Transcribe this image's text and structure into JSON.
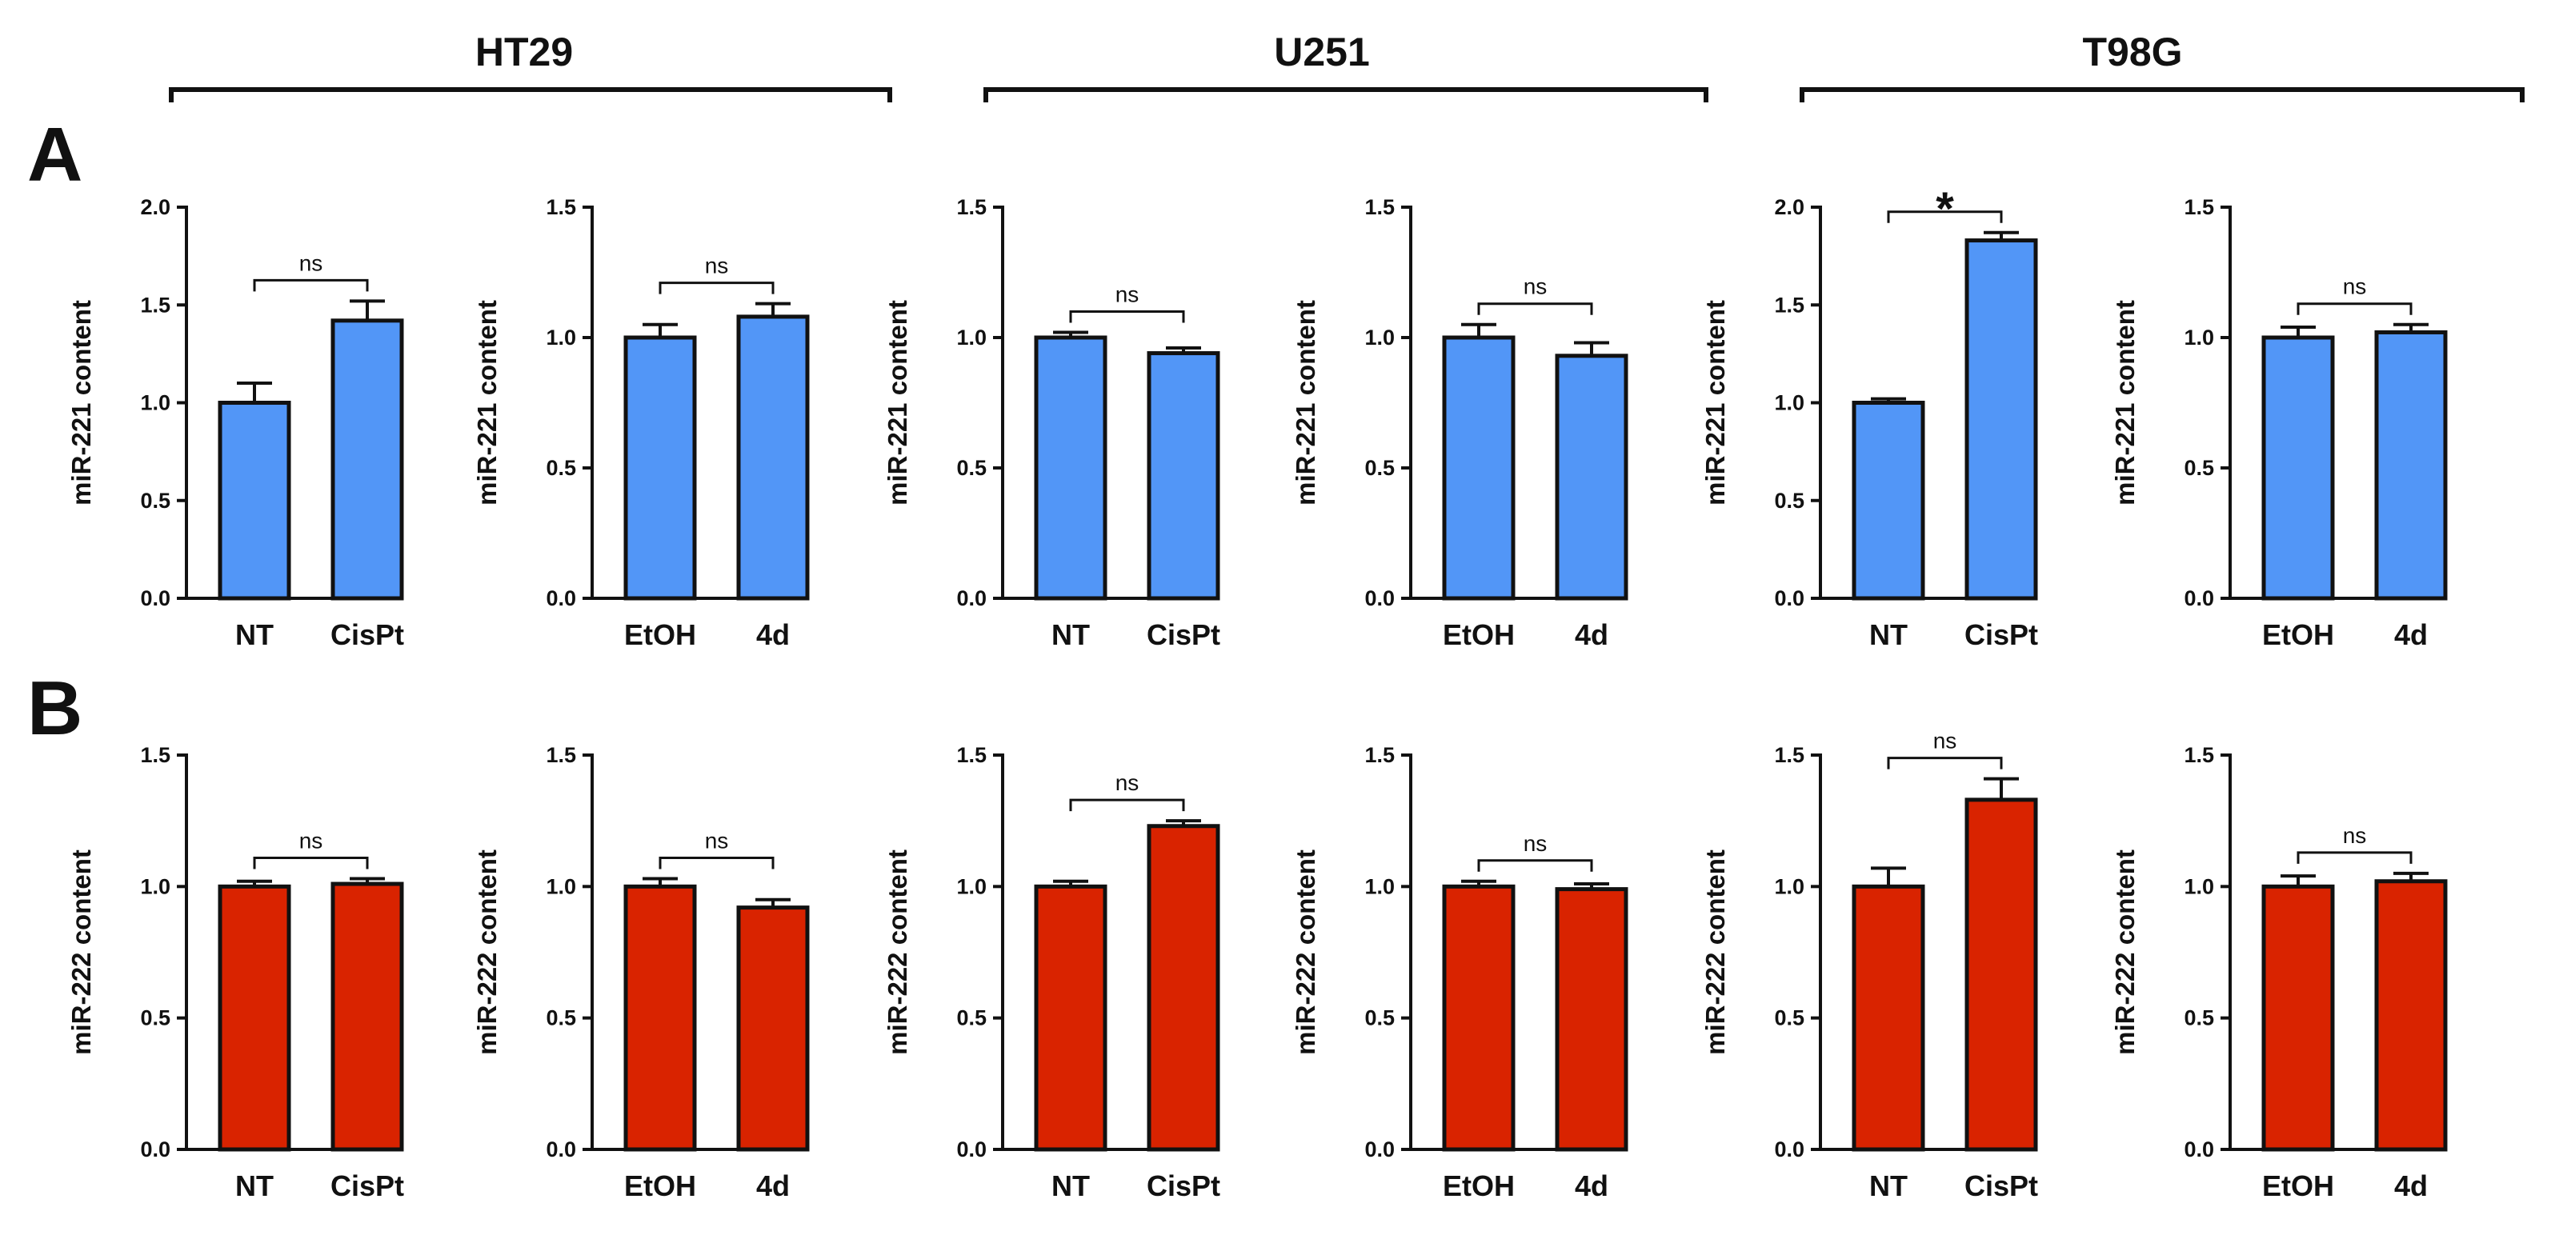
{
  "cell_lines": [
    {
      "name": "HT29"
    },
    {
      "name": "U251"
    },
    {
      "name": "T98G"
    }
  ],
  "panel_labels": [
    "A",
    "B"
  ],
  "colors": {
    "panel_A_bar": "#5296f7",
    "panel_B_bar": "#d92300",
    "ink": "#111111"
  },
  "chart_data": [
    {
      "type": "bar",
      "panel": "A",
      "cell_line": "HT29",
      "ylabel": "miR-221 content",
      "categories": [
        "NT",
        "CisPt"
      ],
      "values": [
        1.0,
        1.42
      ],
      "errors": [
        0.1,
        0.1
      ],
      "ylim": [
        0,
        2.0
      ],
      "yticks": [
        "0.0",
        "0.5",
        "1.0",
        "1.5",
        "2.0"
      ],
      "significance": "ns"
    },
    {
      "type": "bar",
      "panel": "A",
      "cell_line": "HT29",
      "ylabel": "miR-221 content",
      "categories": [
        "EtOH",
        "4d"
      ],
      "values": [
        1.0,
        1.08
      ],
      "errors": [
        0.05,
        0.05
      ],
      "ylim": [
        0,
        1.5
      ],
      "yticks": [
        "0.0",
        "0.5",
        "1.0",
        "1.5"
      ],
      "significance": "ns"
    },
    {
      "type": "bar",
      "panel": "A",
      "cell_line": "U251",
      "ylabel": "miR-221 content",
      "categories": [
        "NT",
        "CisPt"
      ],
      "values": [
        1.0,
        0.94
      ],
      "errors": [
        0.02,
        0.02
      ],
      "ylim": [
        0,
        1.5
      ],
      "yticks": [
        "0.0",
        "0.5",
        "1.0",
        "1.5"
      ],
      "significance": "ns"
    },
    {
      "type": "bar",
      "panel": "A",
      "cell_line": "U251",
      "ylabel": "miR-221 content",
      "categories": [
        "EtOH",
        "4d"
      ],
      "values": [
        1.0,
        0.93
      ],
      "errors": [
        0.05,
        0.05
      ],
      "ylim": [
        0,
        1.5
      ],
      "yticks": [
        "0.0",
        "0.5",
        "1.0",
        "1.5"
      ],
      "significance": "ns"
    },
    {
      "type": "bar",
      "panel": "A",
      "cell_line": "T98G",
      "ylabel": "miR-221 content",
      "categories": [
        "NT",
        "CisPt"
      ],
      "values": [
        1.0,
        1.83
      ],
      "errors": [
        0.02,
        0.04
      ],
      "ylim": [
        0,
        2.0
      ],
      "yticks": [
        "0.0",
        "0.5",
        "1.0",
        "1.5",
        "2.0"
      ],
      "significance": "*"
    },
    {
      "type": "bar",
      "panel": "A",
      "cell_line": "T98G",
      "ylabel": "miR-221 content",
      "categories": [
        "EtOH",
        "4d"
      ],
      "values": [
        1.0,
        1.02
      ],
      "errors": [
        0.04,
        0.03
      ],
      "ylim": [
        0,
        1.5
      ],
      "yticks": [
        "0.0",
        "0.5",
        "1.0",
        "1.5"
      ],
      "significance": "ns"
    },
    {
      "type": "bar",
      "panel": "B",
      "cell_line": "HT29",
      "ylabel": "miR-222 content",
      "categories": [
        "NT",
        "CisPt"
      ],
      "values": [
        1.0,
        1.01
      ],
      "errors": [
        0.02,
        0.02
      ],
      "ylim": [
        0,
        1.5
      ],
      "yticks": [
        "0.0",
        "0.5",
        "1.0",
        "1.5"
      ],
      "significance": "ns"
    },
    {
      "type": "bar",
      "panel": "B",
      "cell_line": "HT29",
      "ylabel": "miR-222 content",
      "categories": [
        "EtOH",
        "4d"
      ],
      "values": [
        1.0,
        0.92
      ],
      "errors": [
        0.03,
        0.03
      ],
      "ylim": [
        0,
        1.5
      ],
      "yticks": [
        "0.0",
        "0.5",
        "1.0",
        "1.5"
      ],
      "significance": "ns"
    },
    {
      "type": "bar",
      "panel": "B",
      "cell_line": "U251",
      "ylabel": "miR-222 content",
      "categories": [
        "NT",
        "CisPt"
      ],
      "values": [
        1.0,
        1.23
      ],
      "errors": [
        0.02,
        0.02
      ],
      "ylim": [
        0,
        1.5
      ],
      "yticks": [
        "0.0",
        "0.5",
        "1.0",
        "1.5"
      ],
      "significance": "ns"
    },
    {
      "type": "bar",
      "panel": "B",
      "cell_line": "U251",
      "ylabel": "miR-222 content",
      "categories": [
        "EtOH",
        "4d"
      ],
      "values": [
        1.0,
        0.99
      ],
      "errors": [
        0.02,
        0.02
      ],
      "ylim": [
        0,
        1.5
      ],
      "yticks": [
        "0.0",
        "0.5",
        "1.0",
        "1.5"
      ],
      "significance": "ns"
    },
    {
      "type": "bar",
      "panel": "B",
      "cell_line": "T98G",
      "ylabel": "miR-222 content",
      "categories": [
        "NT",
        "CisPt"
      ],
      "values": [
        1.0,
        1.33
      ],
      "errors": [
        0.07,
        0.08
      ],
      "ylim": [
        0,
        1.5
      ],
      "yticks": [
        "0.0",
        "0.5",
        "1.0",
        "1.5"
      ],
      "significance": "ns"
    },
    {
      "type": "bar",
      "panel": "B",
      "cell_line": "T98G",
      "ylabel": "miR-222 content",
      "categories": [
        "EtOH",
        "4d"
      ],
      "values": [
        1.0,
        1.02
      ],
      "errors": [
        0.04,
        0.03
      ],
      "ylim": [
        0,
        1.5
      ],
      "yticks": [
        "0.0",
        "0.5",
        "1.0",
        "1.5"
      ],
      "significance": "ns"
    }
  ]
}
